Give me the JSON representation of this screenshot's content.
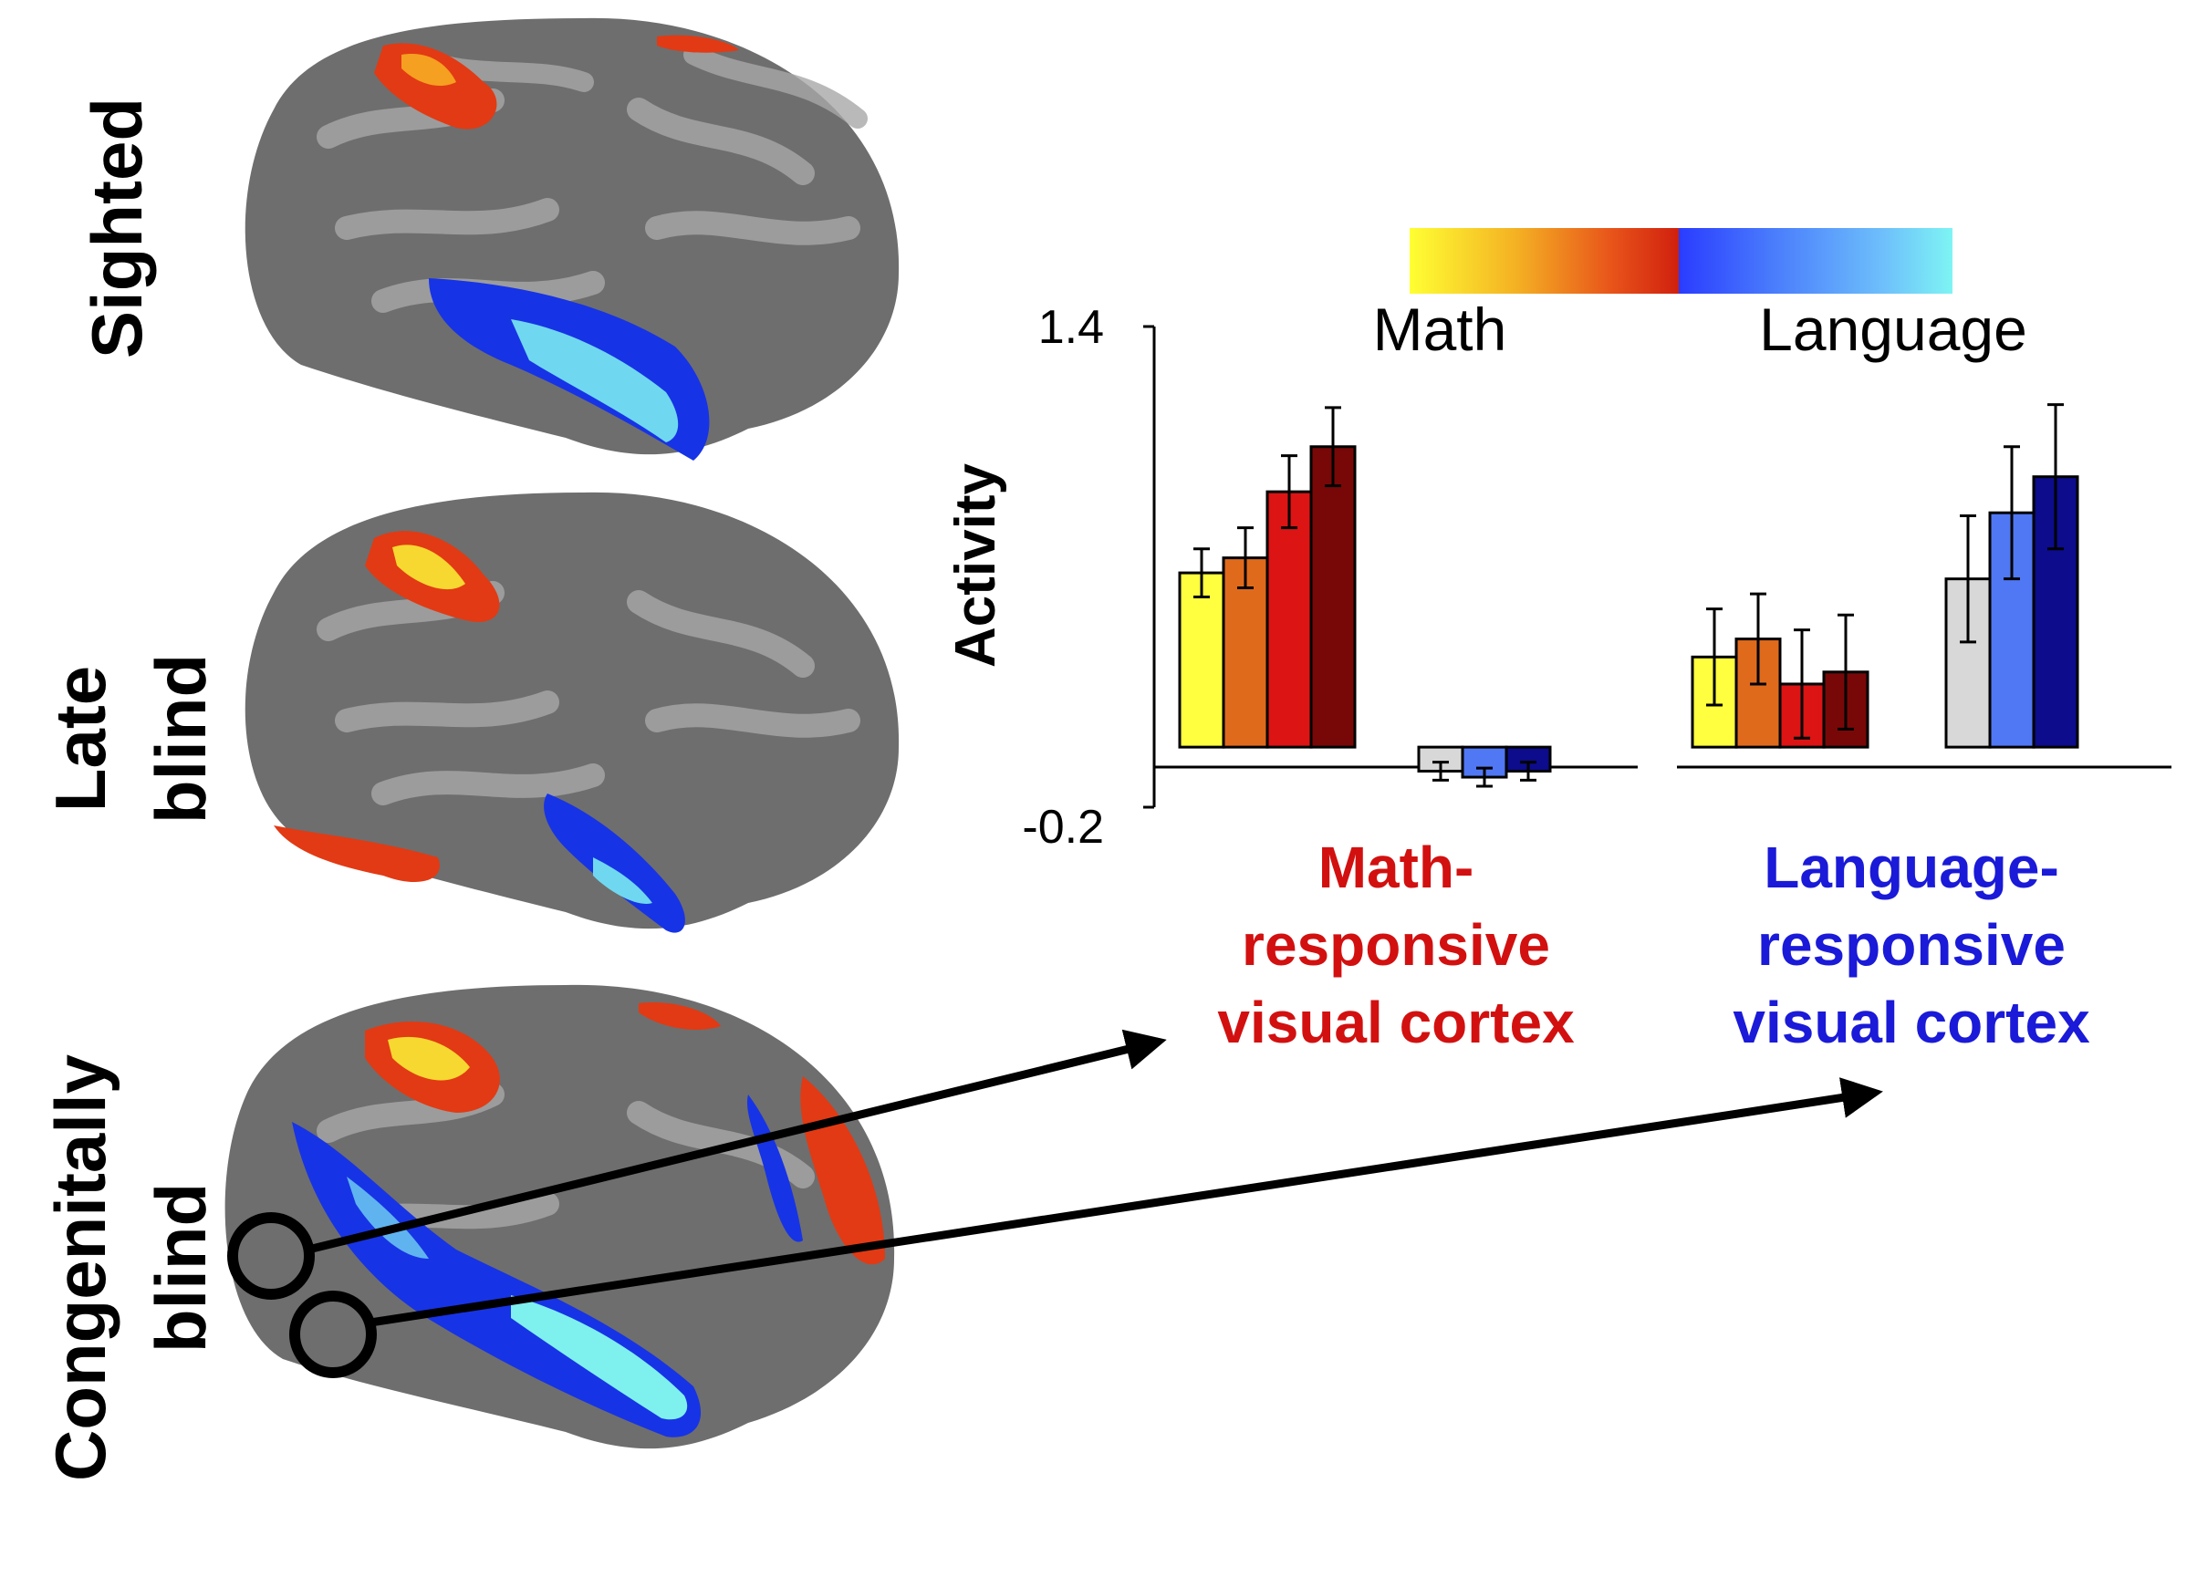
{
  "row_labels": {
    "sighted": "Sighted",
    "late_1": "Late",
    "late_2": "blind",
    "cong_1": "Congenitally",
    "cong_2": "blind"
  },
  "legend": {
    "math": "Math",
    "language": "Language",
    "math_gradient": [
      "#ffff33",
      "#f4b023",
      "#e8541a",
      "#d0200e"
    ],
    "language_gradient": [
      "#2a3cff",
      "#4a7dfc",
      "#6ec0fb",
      "#7ef4f4"
    ]
  },
  "region_labels": {
    "math_lines": [
      "Math-",
      "responsive",
      "visual cortex"
    ],
    "language_lines": [
      "Language-",
      "responsive",
      "visual cortex"
    ],
    "math_color": "#d21010",
    "language_color": "#1a1ad8"
  },
  "chart_data": {
    "type": "bar",
    "ylabel": "Activity",
    "ylim": [
      -0.2,
      1.4
    ],
    "yticks": [
      "1.4",
      "-0.2"
    ],
    "groups": [
      {
        "region": "Math-responsive visual cortex",
        "subgroups": [
          {
            "condition": "Math",
            "bars": [
              {
                "value": 0.58,
                "err": 0.08,
                "color": "#ffff40"
              },
              {
                "value": 0.63,
                "err": 0.1,
                "color": "#e06a1c"
              },
              {
                "value": 0.85,
                "err": 0.12,
                "color": "#dc1414"
              },
              {
                "value": 1.0,
                "err": 0.13,
                "color": "#780808"
              }
            ]
          },
          {
            "condition": "Language",
            "bars": [
              {
                "value": -0.08,
                "err": 0.03,
                "color": "#d8d8d8"
              },
              {
                "value": -0.1,
                "err": 0.03,
                "color": "#5077f4"
              },
              {
                "value": -0.08,
                "err": 0.03,
                "color": "#0c0c8c"
              }
            ]
          }
        ]
      },
      {
        "region": "Language-responsive visual cortex",
        "subgroups": [
          {
            "condition": "Math",
            "bars": [
              {
                "value": 0.3,
                "err": 0.16,
                "color": "#ffff40"
              },
              {
                "value": 0.36,
                "err": 0.15,
                "color": "#e06a1c"
              },
              {
                "value": 0.21,
                "err": 0.18,
                "color": "#dc1414"
              },
              {
                "value": 0.25,
                "err": 0.19,
                "color": "#780808"
              }
            ]
          },
          {
            "condition": "Language",
            "bars": [
              {
                "value": 0.56,
                "err": 0.21,
                "color": "#d8d8d8"
              },
              {
                "value": 0.78,
                "err": 0.22,
                "color": "#5077f4"
              },
              {
                "value": 0.9,
                "err": 0.24,
                "color": "#0c0c8c"
              }
            ]
          }
        ]
      }
    ]
  }
}
